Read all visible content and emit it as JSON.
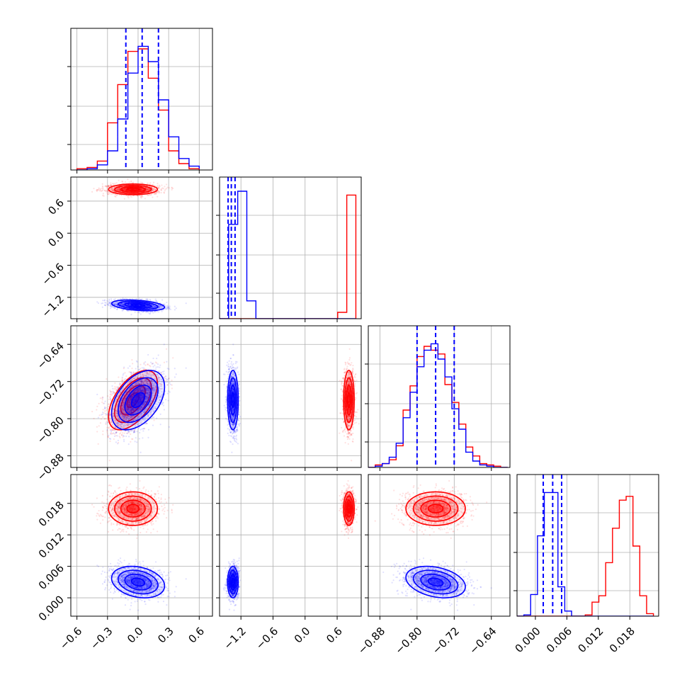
{
  "chart_data": {
    "type": "corner",
    "grid": true,
    "colors": {
      "sample_a": "#0000ff",
      "sample_b": "#ff0000",
      "grid": "#b0b0b0",
      "frame": "#000000"
    },
    "params": [
      {
        "range": [
          -0.66,
          0.73
        ],
        "ticks": [
          "-0.6",
          "-0.3",
          "0.0",
          "0.3",
          "0.6"
        ]
      },
      {
        "range": [
          -1.6,
          1.05
        ],
        "ticks": [
          "-1.2",
          "-0.6",
          "0.0",
          "0.6"
        ]
      },
      {
        "range": [
          -0.905,
          -0.6
        ],
        "ticks": [
          "-0.88",
          "-0.80",
          "-0.72",
          "-0.64"
        ]
      },
      {
        "range": [
          -0.0035,
          0.0235
        ],
        "ticks": [
          "0.000",
          "0.006",
          "0.012",
          "0.018"
        ]
      }
    ],
    "quantiles": [
      [
        -0.12,
        0.04,
        0.2
      ],
      [
        -1.44,
        -1.38,
        -1.31
      ],
      [
        -0.8,
        -0.76,
        -0.72
      ],
      [
        0.0015,
        0.0033,
        0.005
      ]
    ],
    "marginals": [
      {
        "edges": [
          -0.6,
          -0.5,
          -0.4,
          -0.3,
          -0.2,
          -0.1,
          0.0,
          0.1,
          0.2,
          0.3,
          0.4,
          0.5,
          0.6
        ],
        "blue": [
          0,
          0.01,
          0.04,
          0.15,
          0.4,
          0.76,
          0.97,
          0.85,
          0.55,
          0.26,
          0.09,
          0.03,
          0.01
        ],
        "red": [
          0.01,
          0.02,
          0.07,
          0.37,
          0.67,
          0.93,
          0.95,
          0.72,
          0.47,
          0.15,
          0.05,
          0.01,
          0
        ]
      },
      {
        "edges": [
          -1.6,
          -1.43,
          -1.26,
          -1.09,
          -0.92,
          -0.75,
          -0.58,
          -0.41,
          -0.24,
          -0.07,
          0.1,
          0.27,
          0.44,
          0.61,
          0.78,
          0.95
        ],
        "blue": [
          0,
          0.74,
          1.0,
          0.14,
          0,
          0,
          0,
          0,
          0,
          0,
          0,
          0,
          0,
          0,
          0
        ],
        "red": [
          0,
          0,
          0,
          0,
          0,
          0,
          0,
          0,
          0,
          0,
          0,
          0,
          0,
          0.05,
          0.97
        ]
      },
      {
        "edges": [
          -0.905,
          -0.89,
          -0.875,
          -0.86,
          -0.845,
          -0.83,
          -0.815,
          -0.8,
          -0.785,
          -0.77,
          -0.755,
          -0.74,
          -0.725,
          -0.71,
          -0.695,
          -0.68,
          -0.665,
          -0.65,
          -0.635,
          -0.62,
          -0.605
        ],
        "blue": [
          0,
          0.01,
          0.03,
          0.08,
          0.19,
          0.39,
          0.59,
          0.79,
          0.92,
          0.97,
          0.85,
          0.71,
          0.46,
          0.3,
          0.12,
          0.05,
          0.02,
          0.01,
          0,
          0
        ],
        "red": [
          0,
          0.02,
          0.03,
          0.06,
          0.17,
          0.45,
          0.64,
          0.87,
          0.95,
          0.92,
          0.89,
          0.65,
          0.51,
          0.34,
          0.16,
          0.09,
          0.03,
          0.02,
          0.01,
          0
        ]
      },
      {
        "edges": [
          -0.0035,
          -0.0022,
          -0.0009,
          0.0004,
          0.0017,
          0.003,
          0.0043,
          0.0056,
          0.0069,
          0.0082,
          0.0095,
          0.0108,
          0.0121,
          0.0134,
          0.0147,
          0.016,
          0.0173,
          0.0186,
          0.0199,
          0.0212,
          0.0225
        ],
        "blue": [
          0,
          0.01,
          0.17,
          0.63,
          0.97,
          0.97,
          0.23,
          0.04,
          0,
          0,
          0,
          0,
          0,
          0,
          0,
          0,
          0,
          0,
          0,
          0
        ],
        "red": [
          0,
          0,
          0,
          0,
          0,
          0,
          0,
          0,
          0,
          0,
          0.01,
          0.11,
          0.16,
          0.42,
          0.69,
          0.91,
          0.94,
          0.55,
          0.16,
          0.02
        ]
      }
    ],
    "populations": [
      {
        "color": "blue",
        "mean": [
          0.0,
          -1.35,
          -0.76,
          0.003
        ],
        "sd": [
          0.13,
          0.05,
          0.032,
          0.0015
        ]
      },
      {
        "color": "red",
        "mean": [
          -0.05,
          0.82,
          -0.76,
          0.017
        ],
        "sd": [
          0.12,
          0.05,
          0.032,
          0.0016
        ]
      }
    ],
    "correlations": {
      "blue": [
        [
          1,
          -0.35,
          0.45,
          -0.25
        ],
        [
          -0.35,
          1,
          0,
          0
        ],
        [
          0.45,
          0,
          1,
          -0.3
        ],
        [
          -0.25,
          0,
          -0.3,
          1
        ]
      ],
      "red": [
        [
          1,
          0,
          0.55,
          0
        ],
        [
          0,
          1,
          0,
          0
        ],
        [
          0.55,
          0,
          1,
          0
        ],
        [
          0,
          0,
          0,
          1
        ]
      ]
    }
  }
}
